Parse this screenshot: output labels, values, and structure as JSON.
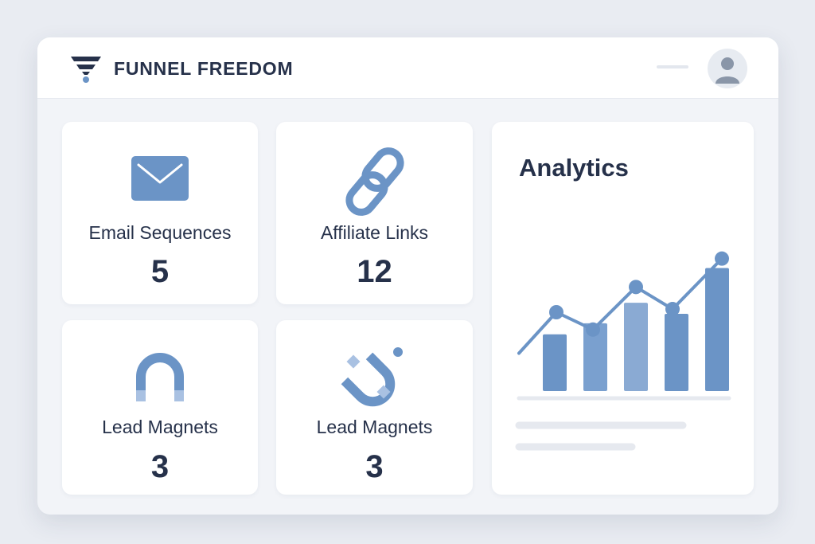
{
  "header": {
    "brand": "FUNNEL FREEDOM",
    "logo_icon": "funnel-icon",
    "avatar_icon": "user-avatar-icon"
  },
  "cards": [
    {
      "label": "Email Sequences",
      "value": "5",
      "icon": "envelope-icon"
    },
    {
      "label": "Affiliate Links",
      "value": "12",
      "icon": "chain-link-icon"
    },
    {
      "label": "Lead Magnets",
      "value": "3",
      "icon": "horseshoe-magnet-icon"
    },
    {
      "label": "Lead Magnets",
      "value": "3",
      "icon": "u-magnet-icon"
    }
  ],
  "analytics": {
    "title": "Analytics"
  },
  "chart_data": {
    "type": "bar",
    "title": "",
    "bars": [
      3.6,
      4.3,
      5.6,
      4.9,
      7.8
    ],
    "line": [
      2.4,
      5.0,
      3.9,
      6.6,
      5.2,
      8.4
    ],
    "ylim": [
      0,
      10
    ],
    "grid": false,
    "legend": "none"
  },
  "colors": {
    "accent": "#6b94c6",
    "accent_light": "#8aaad3",
    "text": "#26314a",
    "background": "#e9ecf2"
  }
}
